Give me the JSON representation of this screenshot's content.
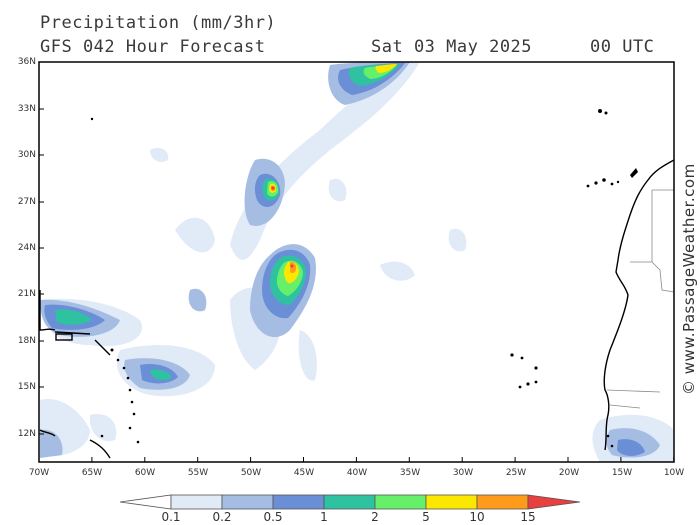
{
  "header": {
    "title": "Precipitation (mm/3hr)",
    "subtitle": "GFS 042 Hour Forecast",
    "date": "Sat 03 May 2025",
    "utc": "00 UTC"
  },
  "credit": "© www.PassageWeather.com",
  "map": {
    "lat_labels": [
      "36N",
      "33N",
      "30N",
      "27N",
      "24N",
      "21N",
      "18N",
      "15N",
      "12N"
    ],
    "lon_labels": [
      "70W",
      "65W",
      "60W",
      "55W",
      "50W",
      "45W",
      "40W",
      "35W",
      "30W",
      "25W",
      "20W",
      "15W",
      "10W"
    ]
  },
  "legend": {
    "labels": [
      "0.1",
      "0.2",
      "0.5",
      "1",
      "2",
      "5",
      "10",
      "15"
    ],
    "colors": [
      "#ffffff",
      "#e1eaf7",
      "#a6bde3",
      "#6a8fd6",
      "#2fc2a0",
      "#66f06a",
      "#fce700",
      "#ff9a1a",
      "#e8403f"
    ]
  },
  "colors": {
    "coastline": "#000000",
    "border": "#888888",
    "frame": "#000000"
  }
}
